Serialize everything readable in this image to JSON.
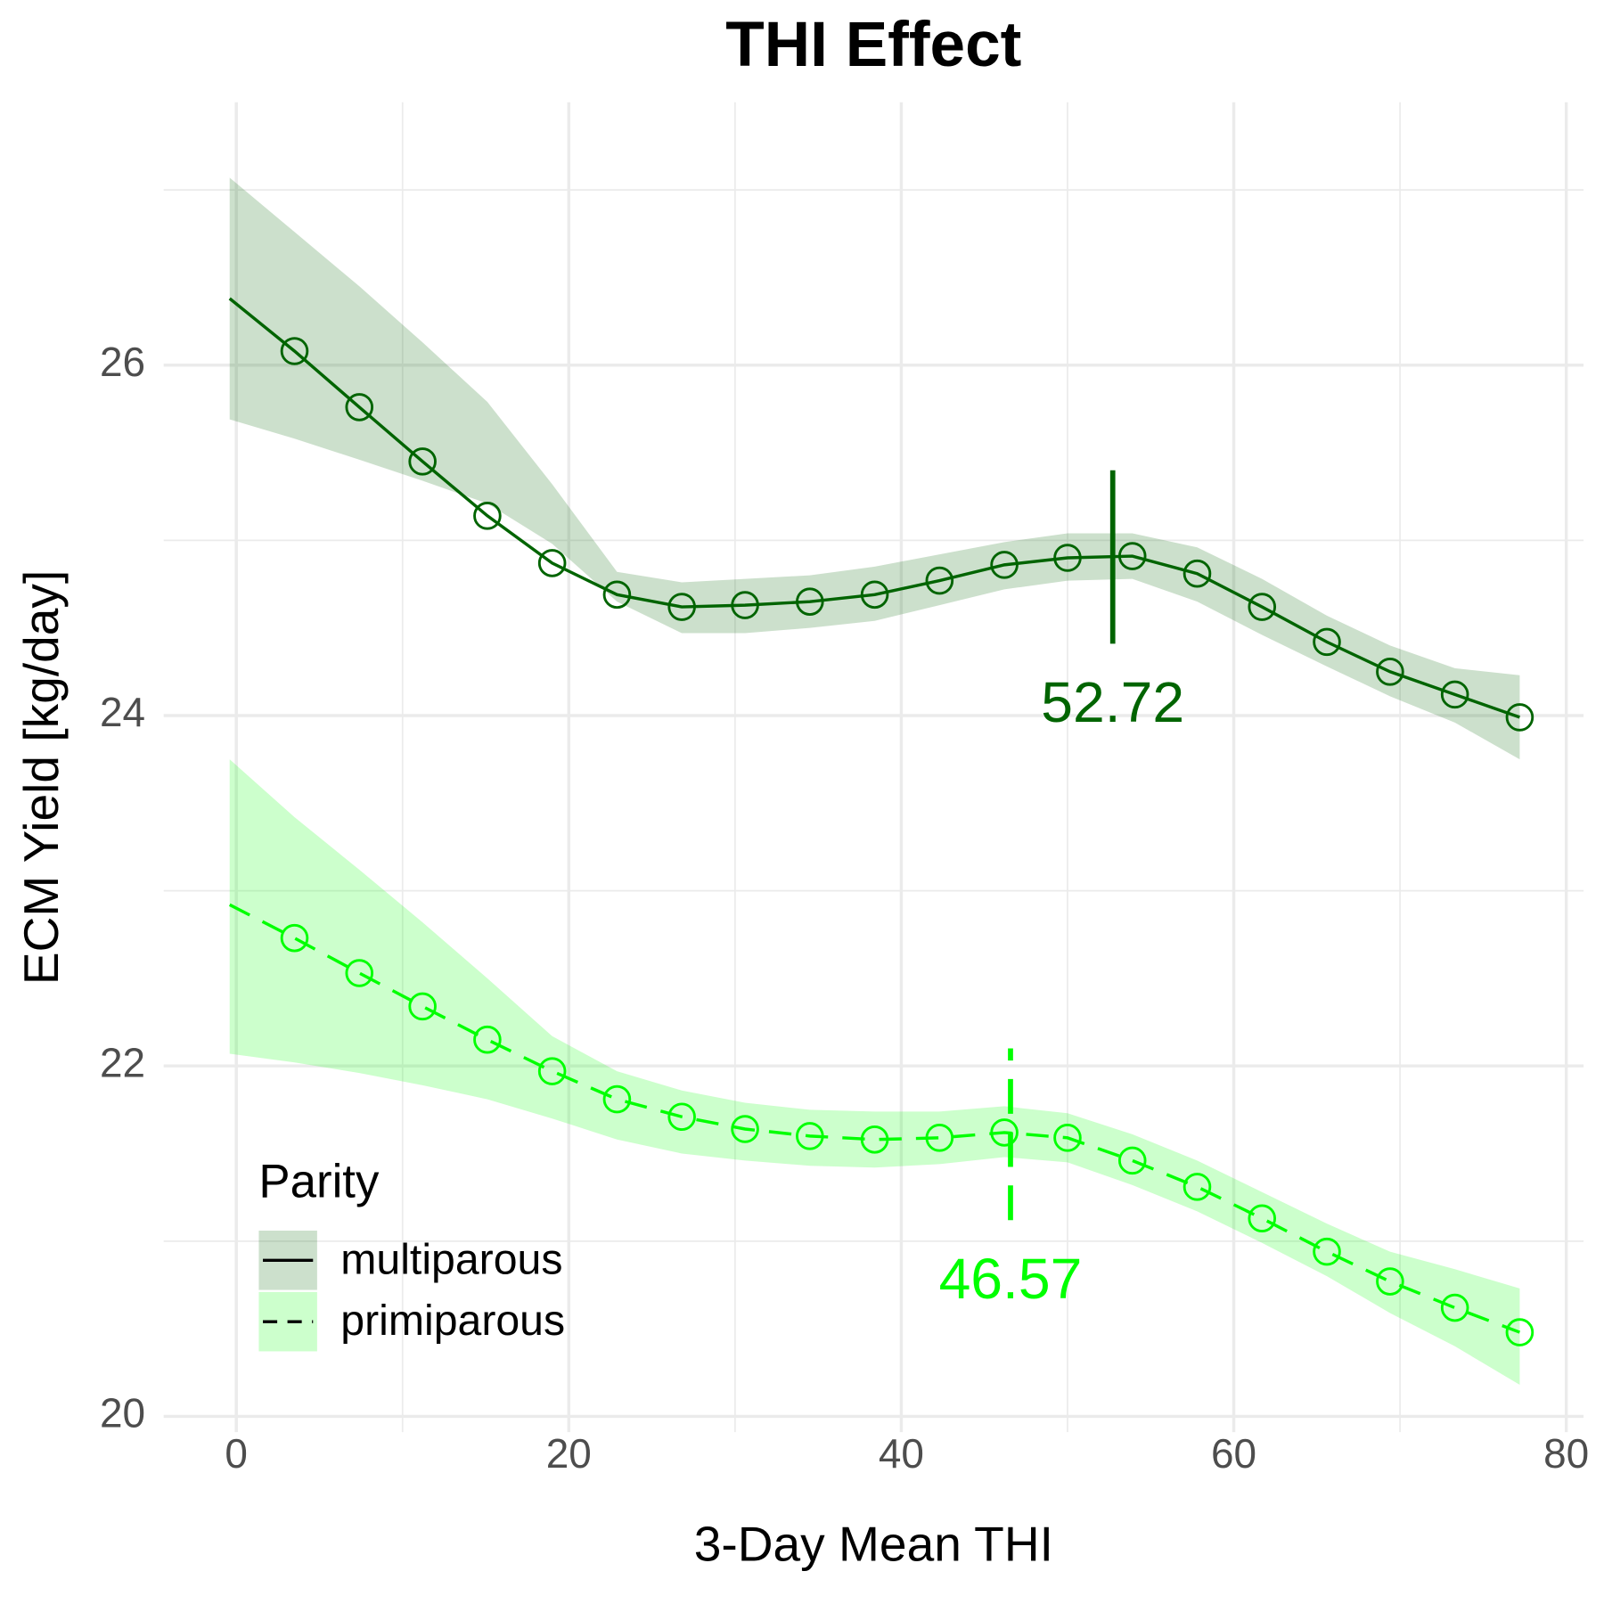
{
  "chart_data": {
    "type": "line",
    "title": "THI Effect",
    "x_label": "3-Day Mean THI",
    "y_label": "ECM Yield [kg/day]",
    "x": [
      -0.4,
      3.5,
      7.4,
      11.2,
      15.1,
      19.0,
      22.9,
      26.8,
      30.6,
      34.5,
      38.4,
      42.3,
      46.2,
      50.0,
      53.9,
      57.8,
      61.7,
      65.6,
      69.4,
      73.3,
      77.2
    ],
    "series": [
      {
        "name": "multiparous",
        "color": "#006400",
        "linetype": "solid",
        "values": [
          26.38,
          26.08,
          25.76,
          25.45,
          25.14,
          24.87,
          24.69,
          24.62,
          24.63,
          24.65,
          24.69,
          24.77,
          24.86,
          24.9,
          24.91,
          24.81,
          24.62,
          24.42,
          24.25,
          24.12,
          23.99
        ],
        "lower": [
          25.69,
          25.58,
          25.46,
          25.34,
          25.21,
          24.98,
          24.65,
          24.47,
          24.47,
          24.5,
          24.54,
          24.63,
          24.72,
          24.77,
          24.78,
          24.65,
          24.46,
          24.28,
          24.11,
          23.96,
          23.75
        ],
        "upper": [
          27.07,
          26.76,
          26.45,
          26.13,
          25.79,
          25.32,
          24.82,
          24.76,
          24.78,
          24.8,
          24.85,
          24.92,
          24.99,
          25.04,
          25.04,
          24.96,
          24.78,
          24.57,
          24.4,
          24.27,
          24.23
        ]
      },
      {
        "name": "primiparous",
        "color": "#00ff00",
        "linetype": "dashed",
        "values": [
          22.92,
          22.73,
          22.53,
          22.34,
          22.15,
          21.97,
          21.81,
          21.71,
          21.64,
          21.6,
          21.58,
          21.59,
          21.62,
          21.59,
          21.46,
          21.31,
          21.13,
          20.94,
          20.77,
          20.62,
          20.48
        ],
        "lower": [
          22.07,
          22.02,
          21.96,
          21.89,
          21.81,
          21.7,
          21.58,
          21.5,
          21.46,
          21.43,
          21.42,
          21.44,
          21.48,
          21.45,
          21.32,
          21.17,
          20.99,
          20.8,
          20.59,
          20.4,
          20.18
        ],
        "upper": [
          23.75,
          23.42,
          23.12,
          22.82,
          22.5,
          22.17,
          21.97,
          21.86,
          21.79,
          21.75,
          21.74,
          21.74,
          21.77,
          21.73,
          21.61,
          21.46,
          21.28,
          21.1,
          20.94,
          20.84,
          20.73
        ]
      }
    ],
    "vlines": [
      {
        "x": 52.72,
        "ymin": 24.41,
        "ymax": 25.4,
        "label_y": 24.05,
        "color": "#006400",
        "linetype": "solid"
      },
      {
        "x": 46.57,
        "ymin": 21.12,
        "ymax": 22.1,
        "label_y": 20.76,
        "color": "#00ff00",
        "linetype": "dashed"
      }
    ],
    "xlim": [
      -4.37,
      81.04
    ],
    "ylim": [
      19.91,
      27.5
    ],
    "xticks": [
      0,
      20,
      40,
      60,
      80
    ],
    "yticks": [
      20,
      22,
      24,
      26
    ],
    "xminor": [
      10,
      30,
      50,
      70
    ],
    "yminor": [
      21,
      23,
      25,
      27
    ],
    "grid": true,
    "legend": {
      "title": "Parity",
      "position": "bottom-left"
    }
  }
}
